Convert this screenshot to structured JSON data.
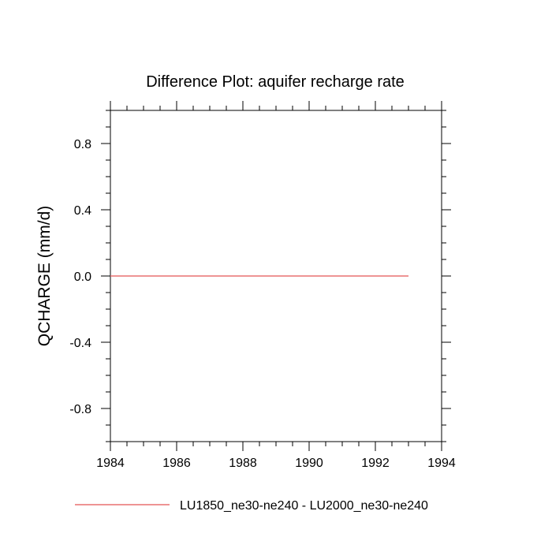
{
  "chart_data": {
    "type": "line",
    "title": "Difference Plot: aquifer recharge rate",
    "xlabel": "",
    "ylabel": "QCHARGE  (mm/d)",
    "xlim": [
      1984,
      1994
    ],
    "ylim": [
      -1.0,
      1.0
    ],
    "x_ticks": [
      1984,
      1986,
      1988,
      1990,
      1992,
      1994
    ],
    "x_tick_labels": [
      "1984",
      "1986",
      "1988",
      "1990",
      "1992",
      "1994"
    ],
    "y_ticks": [
      0.8,
      0.4,
      0.0,
      -0.4,
      -0.8
    ],
    "y_tick_labels": [
      "0.8",
      "0.4",
      "0.0",
      "-0.4",
      "-0.8"
    ],
    "y_minor_step": 0.1,
    "x_minor_step": 0.5,
    "grid": false,
    "legend_position": "bottom",
    "series": [
      {
        "name": "LU1850_ne30-ne240 - LU2000_ne30-ne240",
        "color": "#e87070",
        "x": [
          1984,
          1985,
          1986,
          1987,
          1988,
          1989,
          1990,
          1991,
          1992,
          1993
        ],
        "y": [
          0.0,
          0.0,
          0.0,
          0.0,
          0.0,
          0.0,
          0.0,
          0.0,
          0.0,
          0.0
        ]
      }
    ]
  }
}
